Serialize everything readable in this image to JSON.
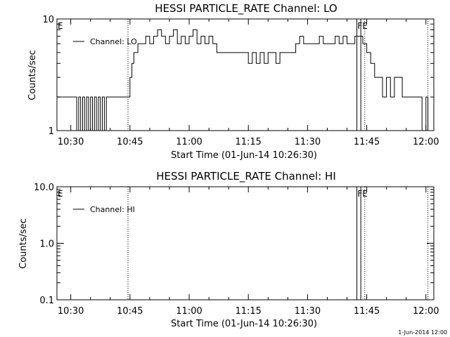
{
  "footer_stamp": "1-Jun-2014 12:00",
  "chart_data": [
    {
      "type": "line",
      "title": "HESSI PARTICLE_RATE Channel: LO",
      "xlabel": "Start Time (01-Jun-14 10:26:30)",
      "ylabel": "Counts/sec",
      "yscale": "log",
      "ylim": [
        1,
        10
      ],
      "ytick_labels": [
        "1",
        "10"
      ],
      "xlim_minutes_after_1030": [
        -3.5,
        92
      ],
      "xtick_labels": [
        "10:30",
        "10:45",
        "11:00",
        "11:15",
        "11:30",
        "11:45",
        "12:00"
      ],
      "legend": {
        "label": "Channel: LO",
        "position": "top-left"
      },
      "markers": [
        {
          "label": "E",
          "x": "10:26:30"
        },
        {
          "label": "FE",
          "x": "11:43:00"
        }
      ],
      "dotted_lines": [
        "10:44:30",
        "11:44:30",
        "12:00:30"
      ],
      "solid_lines": [
        "11:42:30",
        "11:43:30"
      ],
      "series": [
        {
          "name": "Channel: LO",
          "x": [
            "10:26:30",
            "10:31:00",
            "10:31:30",
            "10:32:00",
            "10:32:30",
            "10:33:00",
            "10:33:30",
            "10:34:00",
            "10:34:30",
            "10:35:00",
            "10:35:30",
            "10:36:00",
            "10:36:30",
            "10:37:00",
            "10:37:30",
            "10:38:00",
            "10:38:30",
            "10:39:00",
            "10:39:30",
            "10:44:30",
            "10:45:00",
            "10:45:30",
            "10:46:00",
            "10:47:00",
            "10:48:00",
            "10:49:00",
            "10:50:00",
            "10:51:00",
            "10:52:00",
            "10:53:00",
            "10:54:00",
            "10:55:00",
            "10:56:00",
            "10:57:00",
            "10:58:00",
            "10:59:00",
            "11:00:00",
            "11:01:00",
            "11:02:00",
            "11:03:00",
            "11:04:00",
            "11:05:00",
            "11:06:00",
            "11:07:00",
            "11:08:00",
            "11:09:00",
            "11:10:00",
            "11:11:00",
            "11:12:00",
            "11:13:00",
            "11:14:00",
            "11:15:00",
            "11:16:00",
            "11:17:00",
            "11:18:00",
            "11:19:00",
            "11:20:00",
            "11:21:00",
            "11:22:00",
            "11:23:00",
            "11:24:00",
            "11:25:00",
            "11:26:00",
            "11:27:00",
            "11:28:00",
            "11:29:00",
            "11:30:00",
            "11:31:00",
            "11:32:00",
            "11:33:00",
            "11:34:00",
            "11:35:00",
            "11:36:00",
            "11:37:00",
            "11:38:00",
            "11:39:00",
            "11:40:00",
            "11:41:00",
            "11:42:00",
            "11:44:00",
            "11:45:00",
            "11:46:00",
            "11:47:00",
            "11:48:00",
            "11:49:00",
            "11:50:00",
            "11:51:00",
            "11:52:00",
            "11:53:00",
            "11:54:00",
            "11:55:00",
            "11:56:00",
            "11:57:00",
            "11:58:00",
            "11:59:00",
            "12:00:00",
            "12:00:30"
          ],
          "y": [
            2,
            2,
            1,
            2,
            1,
            2,
            1,
            2,
            1,
            2,
            1,
            2,
            1,
            2,
            1,
            2,
            1,
            2,
            2,
            2,
            3,
            4,
            5,
            6,
            6,
            7,
            6,
            7,
            8,
            7,
            6,
            7,
            8,
            6,
            7,
            6,
            7,
            8,
            6,
            7,
            6,
            7,
            6,
            5,
            5,
            5,
            5,
            5,
            5,
            5,
            5,
            4,
            5,
            4,
            5,
            4,
            5,
            5,
            4,
            5,
            5,
            5,
            5,
            6,
            7,
            6,
            6,
            6,
            6,
            7,
            6,
            6,
            6,
            7,
            6,
            7,
            6,
            6,
            7,
            6,
            5,
            4,
            3,
            3,
            2,
            3,
            2,
            3,
            3,
            2,
            2,
            2,
            2,
            2,
            1,
            2,
            1
          ]
        }
      ]
    },
    {
      "type": "line",
      "title": "HESSI PARTICLE_RATE Channel: HI",
      "xlabel": "Start Time (01-Jun-14 10:26:30)",
      "ylabel": "Counts/sec",
      "yscale": "log",
      "ylim": [
        0.1,
        10
      ],
      "ytick_labels": [
        "0.1",
        "1.0",
        "10.0"
      ],
      "xlim_minutes_after_1030": [
        -3.5,
        92
      ],
      "xtick_labels": [
        "10:30",
        "10:45",
        "11:00",
        "11:15",
        "11:30",
        "11:45",
        "12:00"
      ],
      "legend": {
        "label": "Channel: HI",
        "position": "top-left"
      },
      "markers": [
        {
          "label": "E",
          "x": "10:26:30"
        },
        {
          "label": "FE",
          "x": "11:43:00"
        }
      ],
      "dotted_lines": [
        "10:44:30",
        "11:44:30",
        "12:00:30"
      ],
      "solid_lines": [
        "11:42:30",
        "11:43:30"
      ],
      "series": [
        {
          "name": "Channel: HI",
          "x": [],
          "y": []
        }
      ]
    }
  ]
}
